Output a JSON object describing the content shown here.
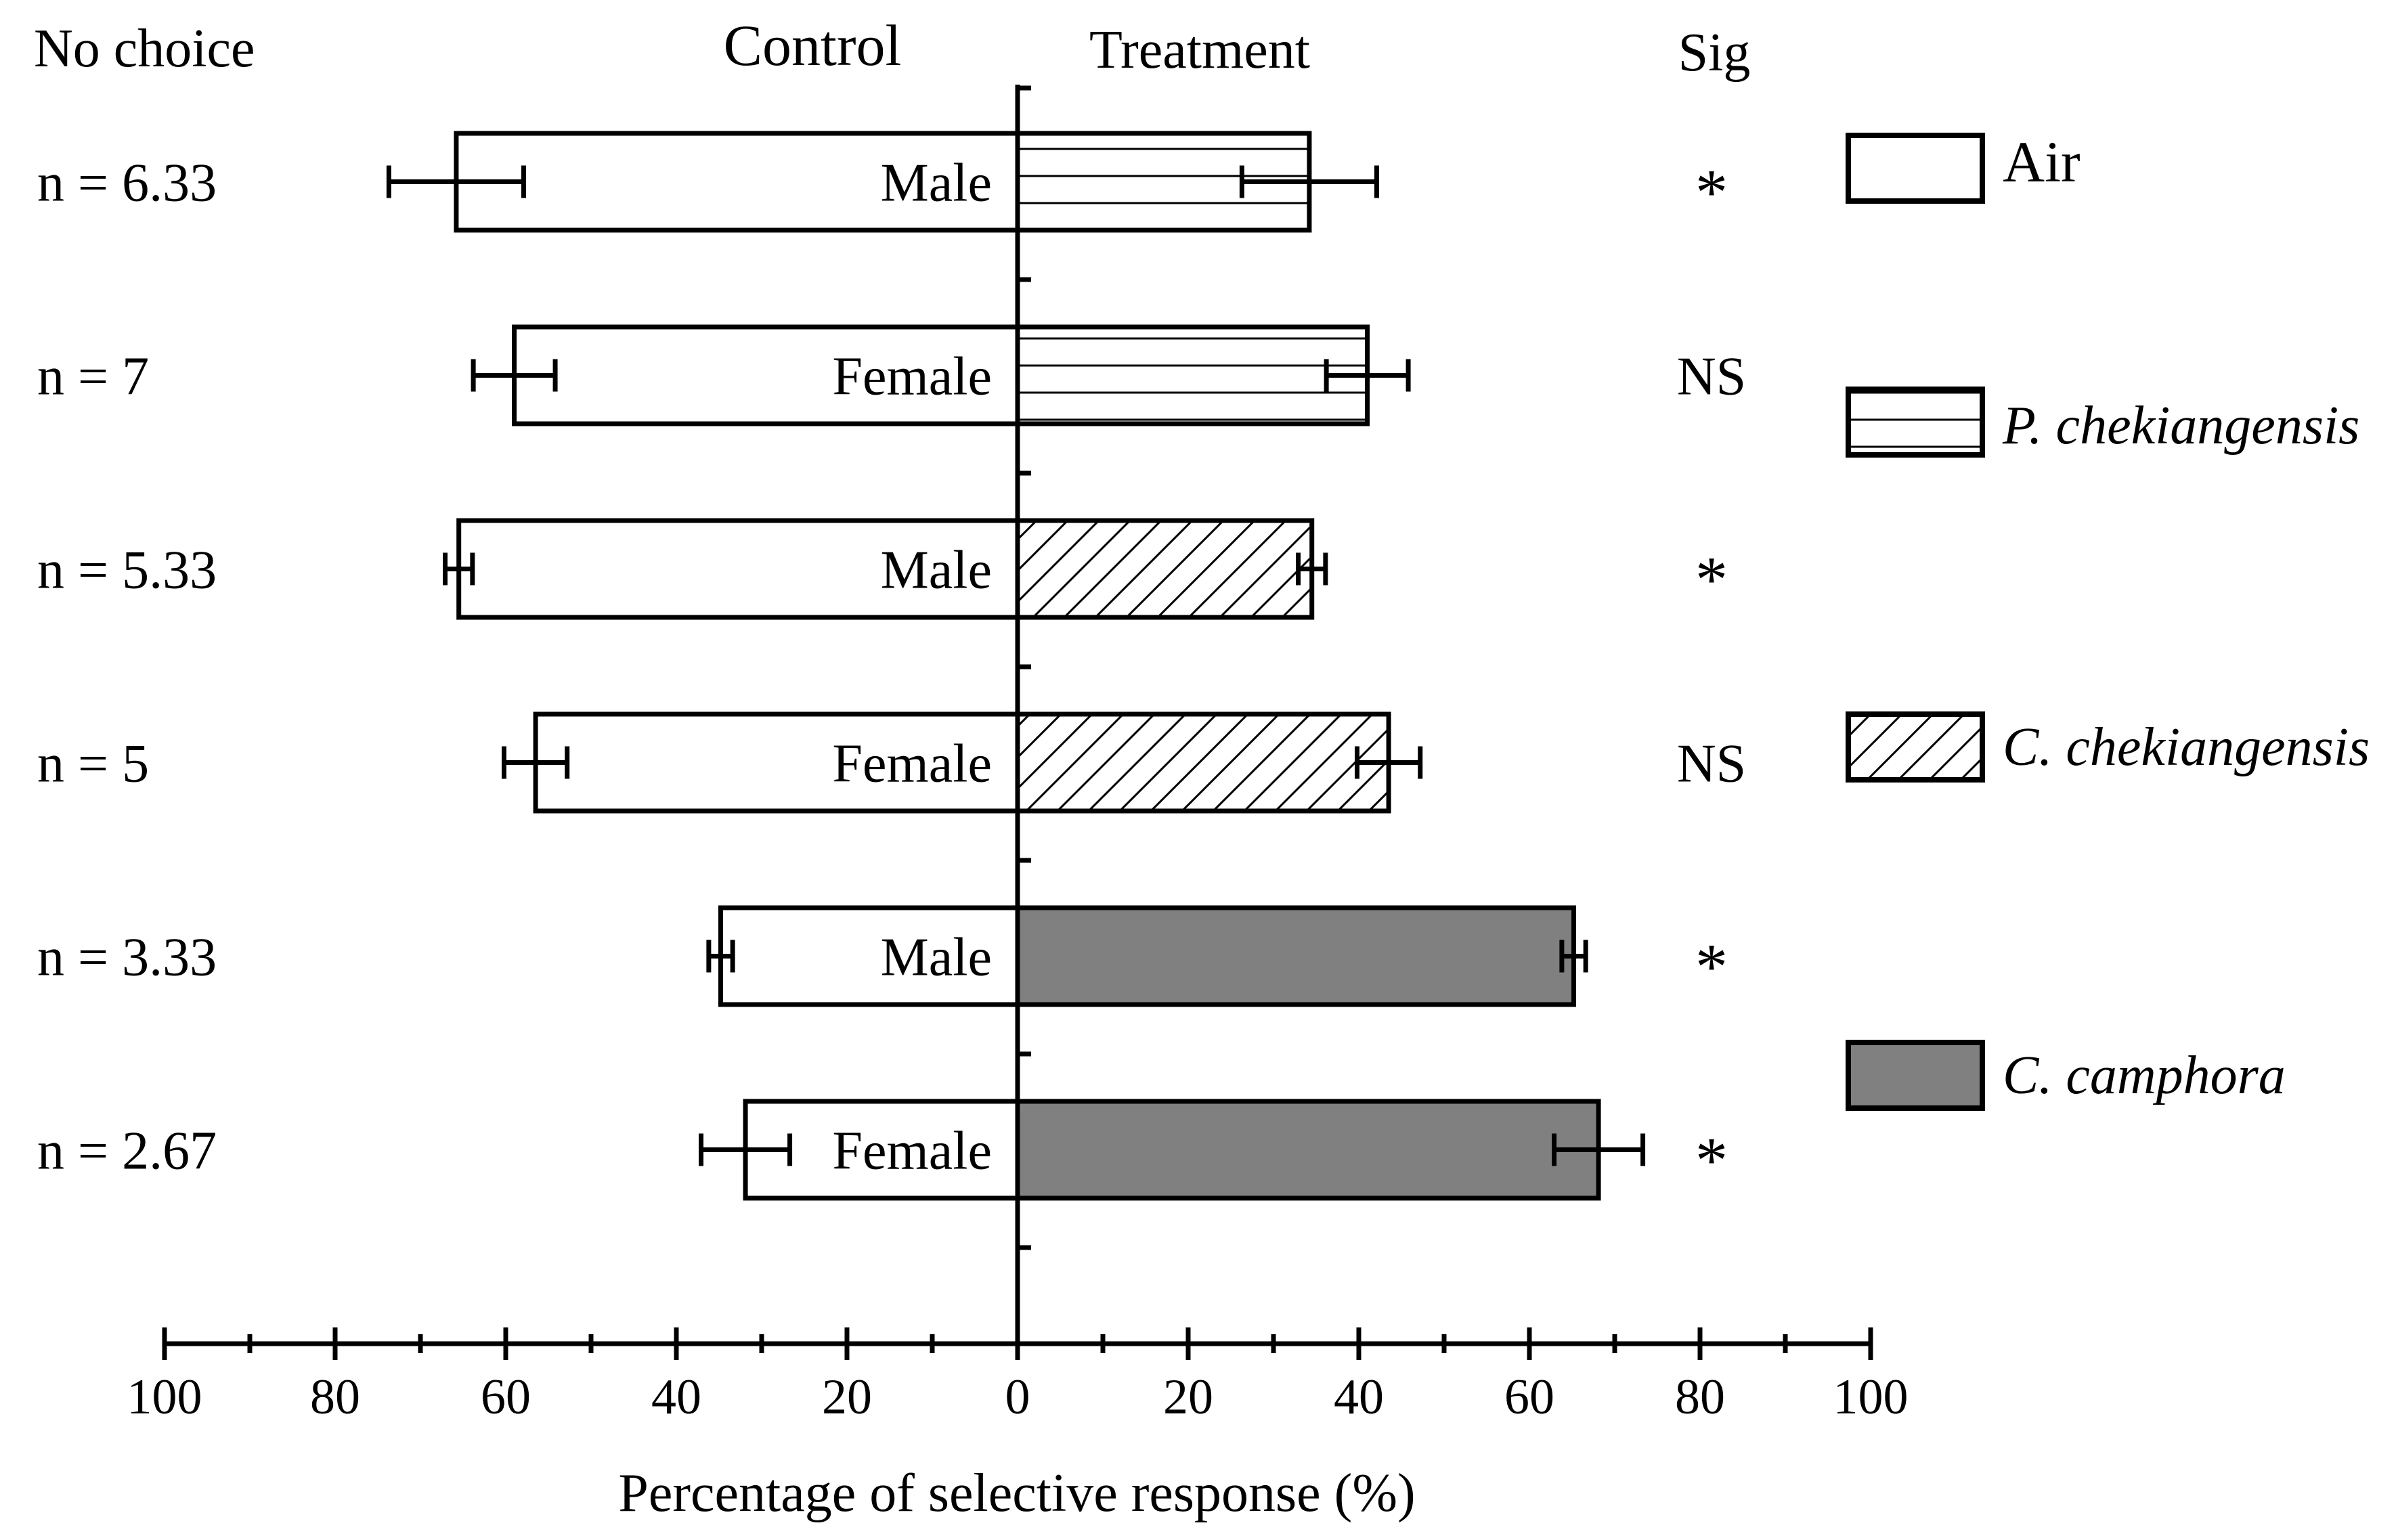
{
  "chart_data": {
    "type": "bar",
    "orientation": "horizontal-diverging",
    "headers": {
      "no_choice": "No choice",
      "control": "Control",
      "treatment": "Treatment",
      "sig": "Sig"
    },
    "xlabel": "Percentage of selective response (%)",
    "xlim": [
      -100,
      100
    ],
    "xticks": [
      "100",
      "80",
      "60",
      "40",
      "20",
      "0",
      "20",
      "40",
      "60",
      "80",
      "100"
    ],
    "rows": [
      {
        "no_choice": "n = 6.33",
        "sex": "Male",
        "treatment": "P. chekiangensis",
        "control": 65.8,
        "control_err": 7.9,
        "treat": 34.2,
        "treat_err": 7.9,
        "sig": "*"
      },
      {
        "no_choice": "n = 7",
        "sex": "Female",
        "treatment": "P. chekiangensis",
        "control": 59.0,
        "control_err": 4.8,
        "treat": 41.0,
        "treat_err": 4.8,
        "sig": "NS"
      },
      {
        "no_choice": "n = 5.33",
        "sex": "Male",
        "treatment": "C. chekiangensis",
        "control": 65.5,
        "control_err": 1.6,
        "treat": 34.5,
        "treat_err": 1.6,
        "sig": "*"
      },
      {
        "no_choice": "n = 5",
        "sex": "Female",
        "treatment": "C. chekiangensis",
        "control": 56.5,
        "control_err": 3.7,
        "treat": 43.5,
        "treat_err": 3.7,
        "sig": "NS"
      },
      {
        "no_choice": "n = 3.33",
        "sex": "Male",
        "treatment": "C. camphora",
        "control": 34.8,
        "control_err": 1.4,
        "treat": 65.2,
        "treat_err": 1.4,
        "sig": "*"
      },
      {
        "no_choice": "n = 2.67",
        "sex": "Female",
        "treatment": "C. camphora",
        "control": 31.9,
        "control_err": 5.2,
        "treat": 68.1,
        "treat_err": 5.2,
        "sig": "*"
      }
    ],
    "legend": [
      {
        "label": "Air",
        "pattern": "none",
        "italic": false
      },
      {
        "label": "P. chekiangensis",
        "pattern": "horizontal-lines",
        "italic": true
      },
      {
        "label": "C. chekiangensis",
        "pattern": "diagonal-hatch",
        "italic": true
      },
      {
        "label": "C. camphora",
        "pattern": "gray-fill",
        "italic": true
      }
    ],
    "legend_position": "right",
    "colors": {
      "line": "#000000",
      "fill_gray": "#808080",
      "fill_white": "#ffffff"
    }
  }
}
